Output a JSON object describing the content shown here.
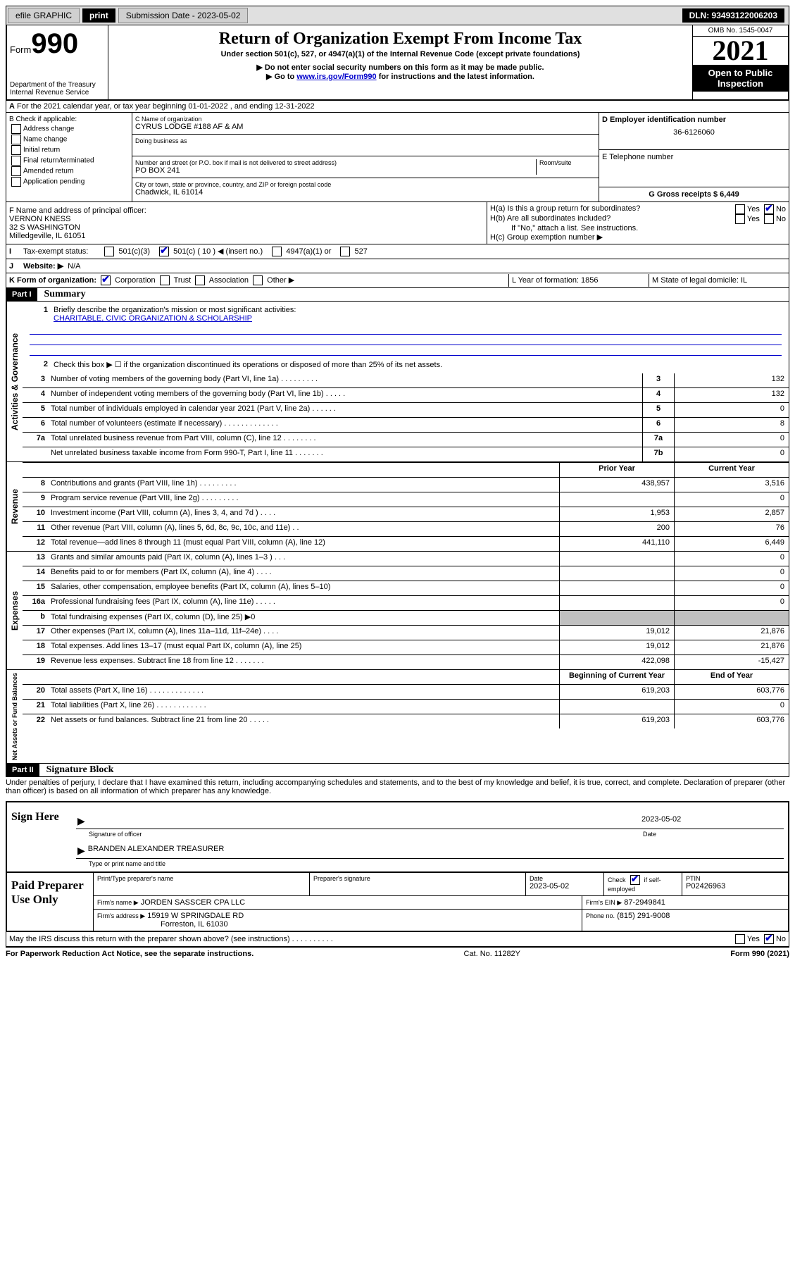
{
  "top_bar": {
    "efile": "efile GRAPHIC",
    "print": "print",
    "submission_label": "Submission Date - 2023-05-02",
    "dln_label": "DLN: 93493122006203"
  },
  "header": {
    "form_label": "Form",
    "form_number": "990",
    "dept": "Department of the Treasury",
    "irs": "Internal Revenue Service",
    "title": "Return of Organization Exempt From Income Tax",
    "subtitle": "Under section 501(c), 527, or 4947(a)(1) of the Internal Revenue Code (except private foundations)",
    "note1": "▶ Do not enter social security numbers on this form as it may be made public.",
    "note2_prefix": "▶ Go to ",
    "note2_link": "www.irs.gov/Form990",
    "note2_suffix": " for instructions and the latest information.",
    "omb": "OMB No. 1545-0047",
    "year": "2021",
    "open": "Open to Public Inspection"
  },
  "line_a": "For the 2021 calendar year, or tax year beginning 01-01-2022   , and ending 12-31-2022",
  "section_b": {
    "label": "B Check if applicable:",
    "opts": [
      "Address change",
      "Name change",
      "Initial return",
      "Final return/terminated",
      "Amended return",
      "Application pending"
    ]
  },
  "section_c": {
    "name_label": "C Name of organization",
    "name": "CYRUS LODGE #188 AF & AM",
    "dba_label": "Doing business as",
    "addr_label": "Number and street (or P.O. box if mail is not delivered to street address)",
    "room_label": "Room/suite",
    "addr": "PO BOX 241",
    "city_label": "City or town, state or province, country, and ZIP or foreign postal code",
    "city": "Chadwick, IL  61014"
  },
  "section_d": {
    "label": "D Employer identification number",
    "value": "36-6126060"
  },
  "section_e": {
    "label": "E Telephone number",
    "value": ""
  },
  "section_g": {
    "label": "G Gross receipts $ 6,449"
  },
  "section_f": {
    "label": "F  Name and address of principal officer:",
    "name": "VERNON KNESS",
    "addr1": "32 S WASHINGTON",
    "addr2": "Milledgeville, IL  61051"
  },
  "section_h": {
    "a": "H(a)  Is this a group return for subordinates?",
    "b": "H(b)  Are all subordinates included?",
    "note": "If \"No,\" attach a list. See instructions.",
    "c": "H(c)  Group exemption number ▶"
  },
  "line_i": {
    "label": "Tax-exempt status:",
    "opts": [
      "501(c)(3)",
      "501(c) ( 10 ) ◀ (insert no.)",
      "4947(a)(1) or",
      "527"
    ]
  },
  "line_j": {
    "label": "Website: ▶",
    "value": "N/A"
  },
  "line_k": {
    "label": "K Form of organization:",
    "opts": [
      "Corporation",
      "Trust",
      "Association",
      "Other ▶"
    ]
  },
  "line_l": {
    "label": "L Year of formation: 1856"
  },
  "line_m": {
    "label": "M State of legal domicile: IL"
  },
  "part1": {
    "header": "Part I",
    "title": "Summary",
    "q1_label": "Briefly describe the organization's mission or most significant activities:",
    "q1_value": "CHARITABLE, CIVIC ORGANIZATION & SCHOLARSHIP",
    "q2": "Check this box ▶ ☐  if the organization discontinued its operations or disposed of more than 25% of its net assets.",
    "rows_gov": [
      {
        "n": "3",
        "d": "Number of voting members of the governing body (Part VI, line 1a)  .   .   .   .   .   .   .   .   .",
        "ln": "3",
        "v": "132"
      },
      {
        "n": "4",
        "d": "Number of independent voting members of the governing body (Part VI, line 1b)  .   .   .   .   .",
        "ln": "4",
        "v": "132"
      },
      {
        "n": "5",
        "d": "Total number of individuals employed in calendar year 2021 (Part V, line 2a)  .   .   .   .   .   .",
        "ln": "5",
        "v": "0"
      },
      {
        "n": "6",
        "d": "Total number of volunteers (estimate if necessary)  .   .   .   .   .   .   .   .   .   .   .   .   .",
        "ln": "6",
        "v": "8"
      },
      {
        "n": "7a",
        "d": "Total unrelated business revenue from Part VIII, column (C), line 12  .   .   .   .   .   .   .   .",
        "ln": "7a",
        "v": "0"
      },
      {
        "n": "",
        "d": "Net unrelated business taxable income from Form 990-T, Part I, line 11  .   .   .   .   .   .   .",
        "ln": "7b",
        "v": "0"
      }
    ],
    "col_prior": "Prior Year",
    "col_current": "Current Year",
    "rows_rev": [
      {
        "n": "8",
        "d": "Contributions and grants (Part VIII, line 1h)  .   .   .   .   .   .   .   .   .",
        "p": "438,957",
        "c": "3,516"
      },
      {
        "n": "9",
        "d": "Program service revenue (Part VIII, line 2g)  .   .   .   .   .   .   .   .   .",
        "p": "",
        "c": "0"
      },
      {
        "n": "10",
        "d": "Investment income (Part VIII, column (A), lines 3, 4, and 7d )  .   .   .   .",
        "p": "1,953",
        "c": "2,857"
      },
      {
        "n": "11",
        "d": "Other revenue (Part VIII, column (A), lines 5, 6d, 8c, 9c, 10c, and 11e)  .   .",
        "p": "200",
        "c": "76"
      },
      {
        "n": "12",
        "d": "Total revenue—add lines 8 through 11 (must equal Part VIII, column (A), line 12)",
        "p": "441,110",
        "c": "6,449"
      }
    ],
    "rows_exp": [
      {
        "n": "13",
        "d": "Grants and similar amounts paid (Part IX, column (A), lines 1–3 )  .   .   .",
        "p": "",
        "c": "0"
      },
      {
        "n": "14",
        "d": "Benefits paid to or for members (Part IX, column (A), line 4)  .   .   .   .",
        "p": "",
        "c": "0"
      },
      {
        "n": "15",
        "d": "Salaries, other compensation, employee benefits (Part IX, column (A), lines 5–10)",
        "p": "",
        "c": "0"
      },
      {
        "n": "16a",
        "d": "Professional fundraising fees (Part IX, column (A), line 11e)  .   .   .   .   .",
        "p": "",
        "c": "0"
      },
      {
        "n": "b",
        "d": "Total fundraising expenses (Part IX, column (D), line 25) ▶0",
        "p": "GRAY",
        "c": "GRAY"
      },
      {
        "n": "17",
        "d": "Other expenses (Part IX, column (A), lines 11a–11d, 11f–24e)  .   .   .   .",
        "p": "19,012",
        "c": "21,876"
      },
      {
        "n": "18",
        "d": "Total expenses. Add lines 13–17 (must equal Part IX, column (A), line 25)",
        "p": "19,012",
        "c": "21,876"
      },
      {
        "n": "19",
        "d": "Revenue less expenses. Subtract line 18 from line 12  .   .   .   .   .   .   .",
        "p": "422,098",
        "c": "-15,427"
      }
    ],
    "col_begin": "Beginning of Current Year",
    "col_end": "End of Year",
    "rows_net": [
      {
        "n": "20",
        "d": "Total assets (Part X, line 16)  .   .   .   .   .   .   .   .   .   .   .   .   .",
        "p": "619,203",
        "c": "603,776"
      },
      {
        "n": "21",
        "d": "Total liabilities (Part X, line 26)  .   .   .   .   .   .   .   .   .   .   .   .",
        "p": "",
        "c": "0"
      },
      {
        "n": "22",
        "d": "Net assets or fund balances. Subtract line 21 from line 20  .   .   .   .   .",
        "p": "619,203",
        "c": "603,776"
      }
    ]
  },
  "side_labels": {
    "gov": "Activities & Governance",
    "rev": "Revenue",
    "exp": "Expenses",
    "net": "Net Assets or Fund Balances"
  },
  "part2": {
    "header": "Part II",
    "title": "Signature Block",
    "penalties": "Under penalties of perjury, I declare that I have examined this return, including accompanying schedules and statements, and to the best of my knowledge and belief, it is true, correct, and complete. Declaration of preparer (other than officer) is based on all information of which preparer has any knowledge."
  },
  "sign": {
    "label": "Sign Here",
    "sig_label": "Signature of officer",
    "date": "2023-05-02",
    "date_label": "Date",
    "name": "BRANDEN ALEXANDER  TREASURER",
    "name_label": "Type or print name and title"
  },
  "preparer": {
    "label": "Paid Preparer Use Only",
    "h1": "Print/Type preparer's name",
    "h2": "Preparer's signature",
    "h3": "Date",
    "date": "2023-05-02",
    "h4_a": "Check",
    "h4_b": "if self-employed",
    "h5": "PTIN",
    "ptin": "P02426963",
    "firm_name_label": "Firm's name    ▶",
    "firm_name": "JORDEN SASSCER CPA LLC",
    "firm_ein_label": "Firm's EIN ▶",
    "firm_ein": "87-2949841",
    "firm_addr_label": "Firm's address ▶",
    "firm_addr1": "15919 W SPRINGDALE RD",
    "firm_addr2": "Forreston, IL  61030",
    "phone_label": "Phone no.",
    "phone": "(815) 291-9008"
  },
  "discuss": "May the IRS discuss this return with the preparer shown above? (see instructions)  .   .   .   .   .   .   .   .   .   .",
  "footer": {
    "left": "For Paperwork Reduction Act Notice, see the separate instructions.",
    "mid": "Cat. No. 11282Y",
    "right_a": "Form ",
    "right_b": "990",
    "right_c": " (2021)"
  },
  "yes": "Yes",
  "no": "No"
}
